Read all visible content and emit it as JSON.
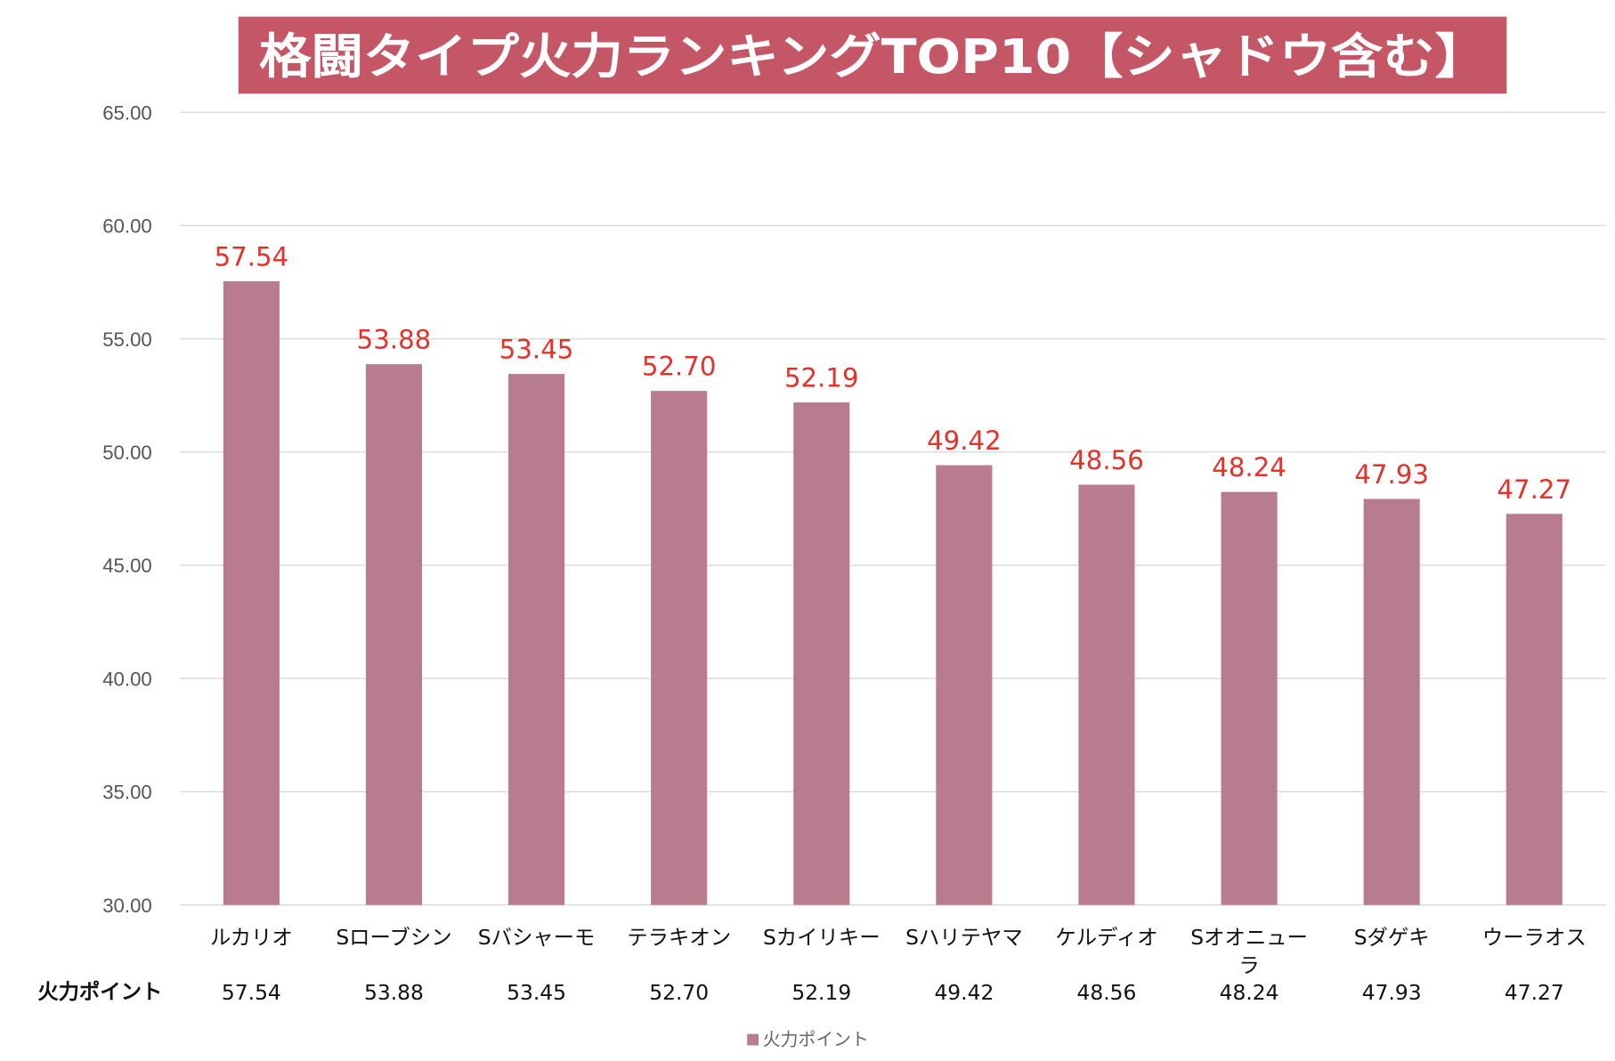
{
  "chart_data": {
    "type": "bar",
    "title": "格闘タイプ火力ランキングTOP10【シャドウ含む】",
    "categories": [
      "ルカリオ",
      "Sローブシン",
      "Sバシャーモ",
      "テラキオン",
      "Sカイリキー",
      "Sハリテヤマ",
      "ケルディオ",
      "Sオオニュー\nラ",
      "Sダゲキ",
      "ウーラオス"
    ],
    "series": [
      {
        "name": "火力ポイント",
        "values": [
          57.54,
          53.88,
          53.45,
          52.7,
          52.19,
          49.42,
          48.56,
          48.24,
          47.93,
          47.27
        ],
        "value_labels": [
          "57.54",
          "53.88",
          "53.45",
          "52.70",
          "52.19",
          "49.42",
          "48.56",
          "48.24",
          "47.93",
          "47.27"
        ]
      }
    ],
    "ylim": [
      30,
      65
    ],
    "yticks": [
      "30.00",
      "35.00",
      "40.00",
      "45.00",
      "50.00",
      "55.00",
      "60.00",
      "65.00"
    ],
    "xlabel": "",
    "ylabel": "",
    "grid": true,
    "legend": {
      "position": "bottom",
      "entries": [
        "火力ポイント"
      ]
    },
    "data_table": true
  },
  "colors": {
    "title_background": "#c45665",
    "title_text": "#ffffff",
    "bar": "#b97c8e",
    "data_label": "#e5312a",
    "grid": "#d9d9d9",
    "axis_label": "#555555",
    "category_label": "#111111"
  }
}
